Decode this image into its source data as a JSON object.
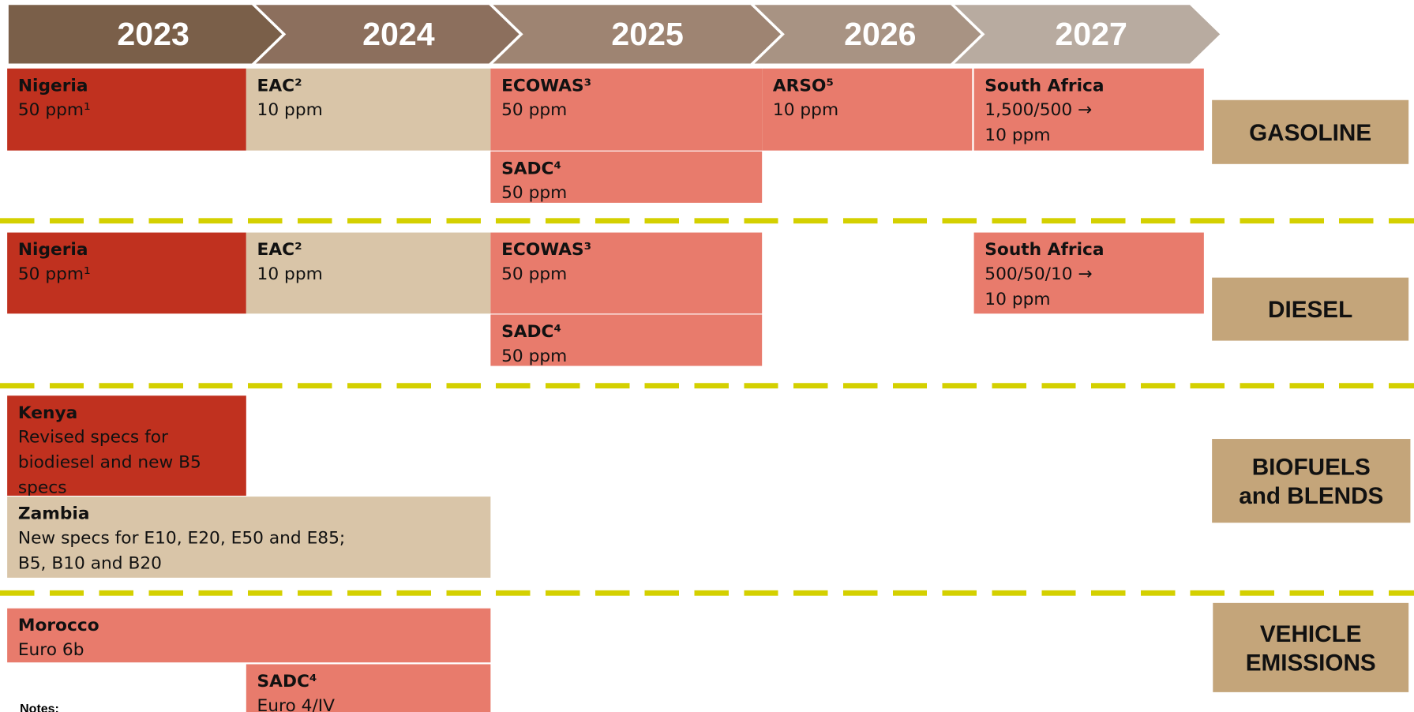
{
  "header": {
    "years": [
      "2023",
      "2024",
      "2025",
      "2026",
      "2027"
    ]
  },
  "sections": [
    {
      "label": [
        "GASOLINE"
      ],
      "boxes": [
        {
          "title": "Nigeria",
          "lines": [
            "50 ppm¹"
          ]
        },
        {
          "title": "EAC²",
          "lines": [
            "10 ppm"
          ]
        },
        {
          "title": "ECOWAS³",
          "lines": [
            "50 ppm"
          ]
        },
        {
          "title": "SADC⁴",
          "lines": [
            "50 ppm"
          ]
        },
        {
          "title": "ARSO⁵",
          "lines": [
            "10 ppm"
          ]
        },
        {
          "title": "South Africa",
          "lines": [
            "1,500/500 →",
            "10 ppm"
          ]
        }
      ]
    },
    {
      "label": [
        "DIESEL"
      ],
      "boxes": [
        {
          "title": "Nigeria",
          "lines": [
            "50 ppm¹"
          ]
        },
        {
          "title": "EAC²",
          "lines": [
            "10 ppm"
          ]
        },
        {
          "title": "ECOWAS³",
          "lines": [
            "50 ppm"
          ]
        },
        {
          "title": "SADC⁴",
          "lines": [
            "50 ppm"
          ]
        },
        {
          "title": "South Africa",
          "lines": [
            "500/50/10 →",
            "10 ppm"
          ]
        }
      ]
    },
    {
      "label": [
        "BIOFUELS",
        "and BLENDS"
      ],
      "boxes": [
        {
          "title": "Kenya",
          "lines": [
            "Revised specs for",
            "biodiesel and new B5",
            "specs"
          ]
        },
        {
          "title": "Zambia",
          "lines": [
            "New specs for E10, E20, E50 and E85;",
            "B5, B10 and B20"
          ]
        }
      ]
    },
    {
      "label": [
        "VEHICLE",
        "EMISSIONS"
      ],
      "boxes": [
        {
          "title": "Morocco",
          "lines": [
            "Euro 6b"
          ]
        },
        {
          "title": "SADC⁴",
          "lines": [
            "Euro 4/IV"
          ]
        }
      ]
    }
  ],
  "notes": "Notes:"
}
